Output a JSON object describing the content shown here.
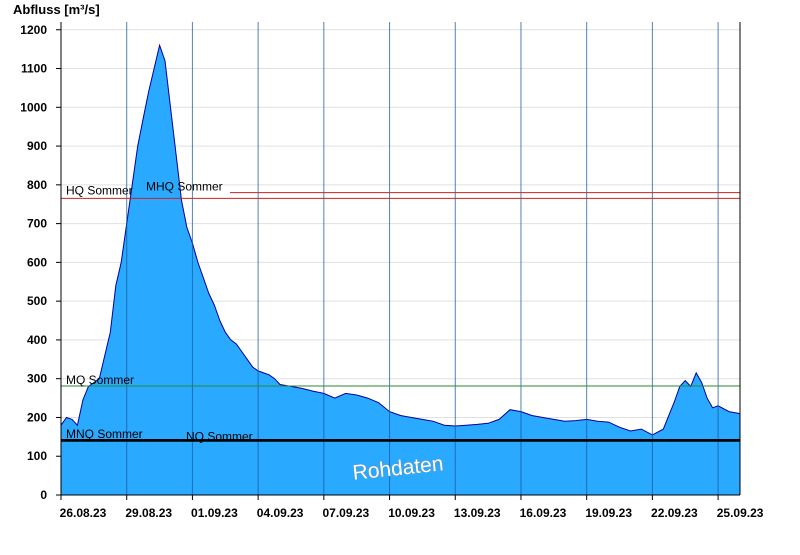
{
  "chart_data": {
    "type": "area",
    "title": "",
    "ylabel": "Abfluss [m³/s]",
    "xlabel": "",
    "ylim": [
      0,
      1220
    ],
    "y_ticks": [
      0,
      100,
      200,
      300,
      400,
      500,
      600,
      700,
      800,
      900,
      1000,
      1100,
      1200
    ],
    "x_tick_labels": [
      "26.08.23",
      "29.08.23",
      "01.09.23",
      "04.09.23",
      "07.09.23",
      "10.09.23",
      "13.09.23",
      "16.09.23",
      "19.09.23",
      "22.09.23",
      "25.09.23"
    ],
    "x_start": "2023-08-26",
    "x_end": "2023-09-26",
    "grid": true,
    "colors": {
      "area_fill": "#29a9ff",
      "area_stroke": "#00009a",
      "grid": "#e0e0e0",
      "day_line": "#1a5a99",
      "hq_line": "#cc2222",
      "mq_line": "#2c8a2c",
      "nq_line": "#000000"
    },
    "reference_lines": [
      {
        "label": "HQ Sommer",
        "value": 765,
        "color": "#cc2222"
      },
      {
        "label": "MHQ Sommer",
        "value": 780,
        "color": "#cc2222"
      },
      {
        "label": "MQ Sommer",
        "value": 281,
        "color": "#2c8a2c"
      },
      {
        "label": "MNQ Sommer",
        "value": 142,
        "color": "#000000"
      },
      {
        "label": "NQ Sommer",
        "value": 140,
        "color": "#000000"
      }
    ],
    "watermark": "Rohdaten",
    "series": [
      {
        "points": [
          [
            "2023-08-26",
            180
          ],
          [
            "2023-08-26T06",
            200
          ],
          [
            "2023-08-26T12",
            195
          ],
          [
            "2023-08-26T18",
            180
          ],
          [
            "2023-08-27",
            245
          ],
          [
            "2023-08-27T06",
            280
          ],
          [
            "2023-08-27T12",
            290
          ],
          [
            "2023-08-27T18",
            300
          ],
          [
            "2023-08-28",
            360
          ],
          [
            "2023-08-28T06",
            420
          ],
          [
            "2023-08-28T12",
            540
          ],
          [
            "2023-08-28T18",
            600
          ],
          [
            "2023-08-29",
            700
          ],
          [
            "2023-08-29T06",
            800
          ],
          [
            "2023-08-29T12",
            900
          ],
          [
            "2023-08-29T18",
            970
          ],
          [
            "2023-08-30",
            1040
          ],
          [
            "2023-08-30T06",
            1100
          ],
          [
            "2023-08-30T12",
            1160
          ],
          [
            "2023-08-30T18",
            1120
          ],
          [
            "2023-08-31",
            1000
          ],
          [
            "2023-08-31T06",
            880
          ],
          [
            "2023-08-31T12",
            760
          ],
          [
            "2023-08-31T18",
            690
          ],
          [
            "2023-09-01",
            650
          ],
          [
            "2023-09-01T06",
            600
          ],
          [
            "2023-09-01T12",
            560
          ],
          [
            "2023-09-01T18",
            520
          ],
          [
            "2023-09-02",
            490
          ],
          [
            "2023-09-02T06",
            450
          ],
          [
            "2023-09-02T12",
            420
          ],
          [
            "2023-09-02T18",
            400
          ],
          [
            "2023-09-03",
            390
          ],
          [
            "2023-09-03T06",
            370
          ],
          [
            "2023-09-03T12",
            350
          ],
          [
            "2023-09-03T18",
            330
          ],
          [
            "2023-09-04",
            320
          ],
          [
            "2023-09-04T06",
            315
          ],
          [
            "2023-09-04T12",
            310
          ],
          [
            "2023-09-04T18",
            300
          ],
          [
            "2023-09-05",
            285
          ],
          [
            "2023-09-05T12",
            280
          ],
          [
            "2023-09-06",
            275
          ],
          [
            "2023-09-06T12",
            268
          ],
          [
            "2023-09-07",
            262
          ],
          [
            "2023-09-07T12",
            250
          ],
          [
            "2023-09-08",
            262
          ],
          [
            "2023-09-08T12",
            258
          ],
          [
            "2023-09-09",
            250
          ],
          [
            "2023-09-09T12",
            238
          ],
          [
            "2023-09-10",
            215
          ],
          [
            "2023-09-10T12",
            205
          ],
          [
            "2023-09-11",
            200
          ],
          [
            "2023-09-11T12",
            195
          ],
          [
            "2023-09-12",
            190
          ],
          [
            "2023-09-12T12",
            180
          ],
          [
            "2023-09-13",
            178
          ],
          [
            "2023-09-13T12",
            180
          ],
          [
            "2023-09-14",
            182
          ],
          [
            "2023-09-14T12",
            185
          ],
          [
            "2023-09-15",
            195
          ],
          [
            "2023-09-15T12",
            220
          ],
          [
            "2023-09-16",
            215
          ],
          [
            "2023-09-16T12",
            205
          ],
          [
            "2023-09-17",
            200
          ],
          [
            "2023-09-17T12",
            195
          ],
          [
            "2023-09-18",
            190
          ],
          [
            "2023-09-18T12",
            192
          ],
          [
            "2023-09-19",
            195
          ],
          [
            "2023-09-19T12",
            190
          ],
          [
            "2023-09-20",
            188
          ],
          [
            "2023-09-20T12",
            175
          ],
          [
            "2023-09-21",
            165
          ],
          [
            "2023-09-21T12",
            170
          ],
          [
            "2023-09-22",
            155
          ],
          [
            "2023-09-22T12",
            170
          ],
          [
            "2023-09-23",
            240
          ],
          [
            "2023-09-23T06",
            280
          ],
          [
            "2023-09-23T12",
            295
          ],
          [
            "2023-09-23T18",
            280
          ],
          [
            "2023-09-24",
            315
          ],
          [
            "2023-09-24T06",
            290
          ],
          [
            "2023-09-24T12",
            250
          ],
          [
            "2023-09-24T18",
            225
          ],
          [
            "2023-09-25",
            230
          ],
          [
            "2023-09-25T12",
            215
          ],
          [
            "2023-09-26",
            210
          ]
        ]
      }
    ]
  }
}
